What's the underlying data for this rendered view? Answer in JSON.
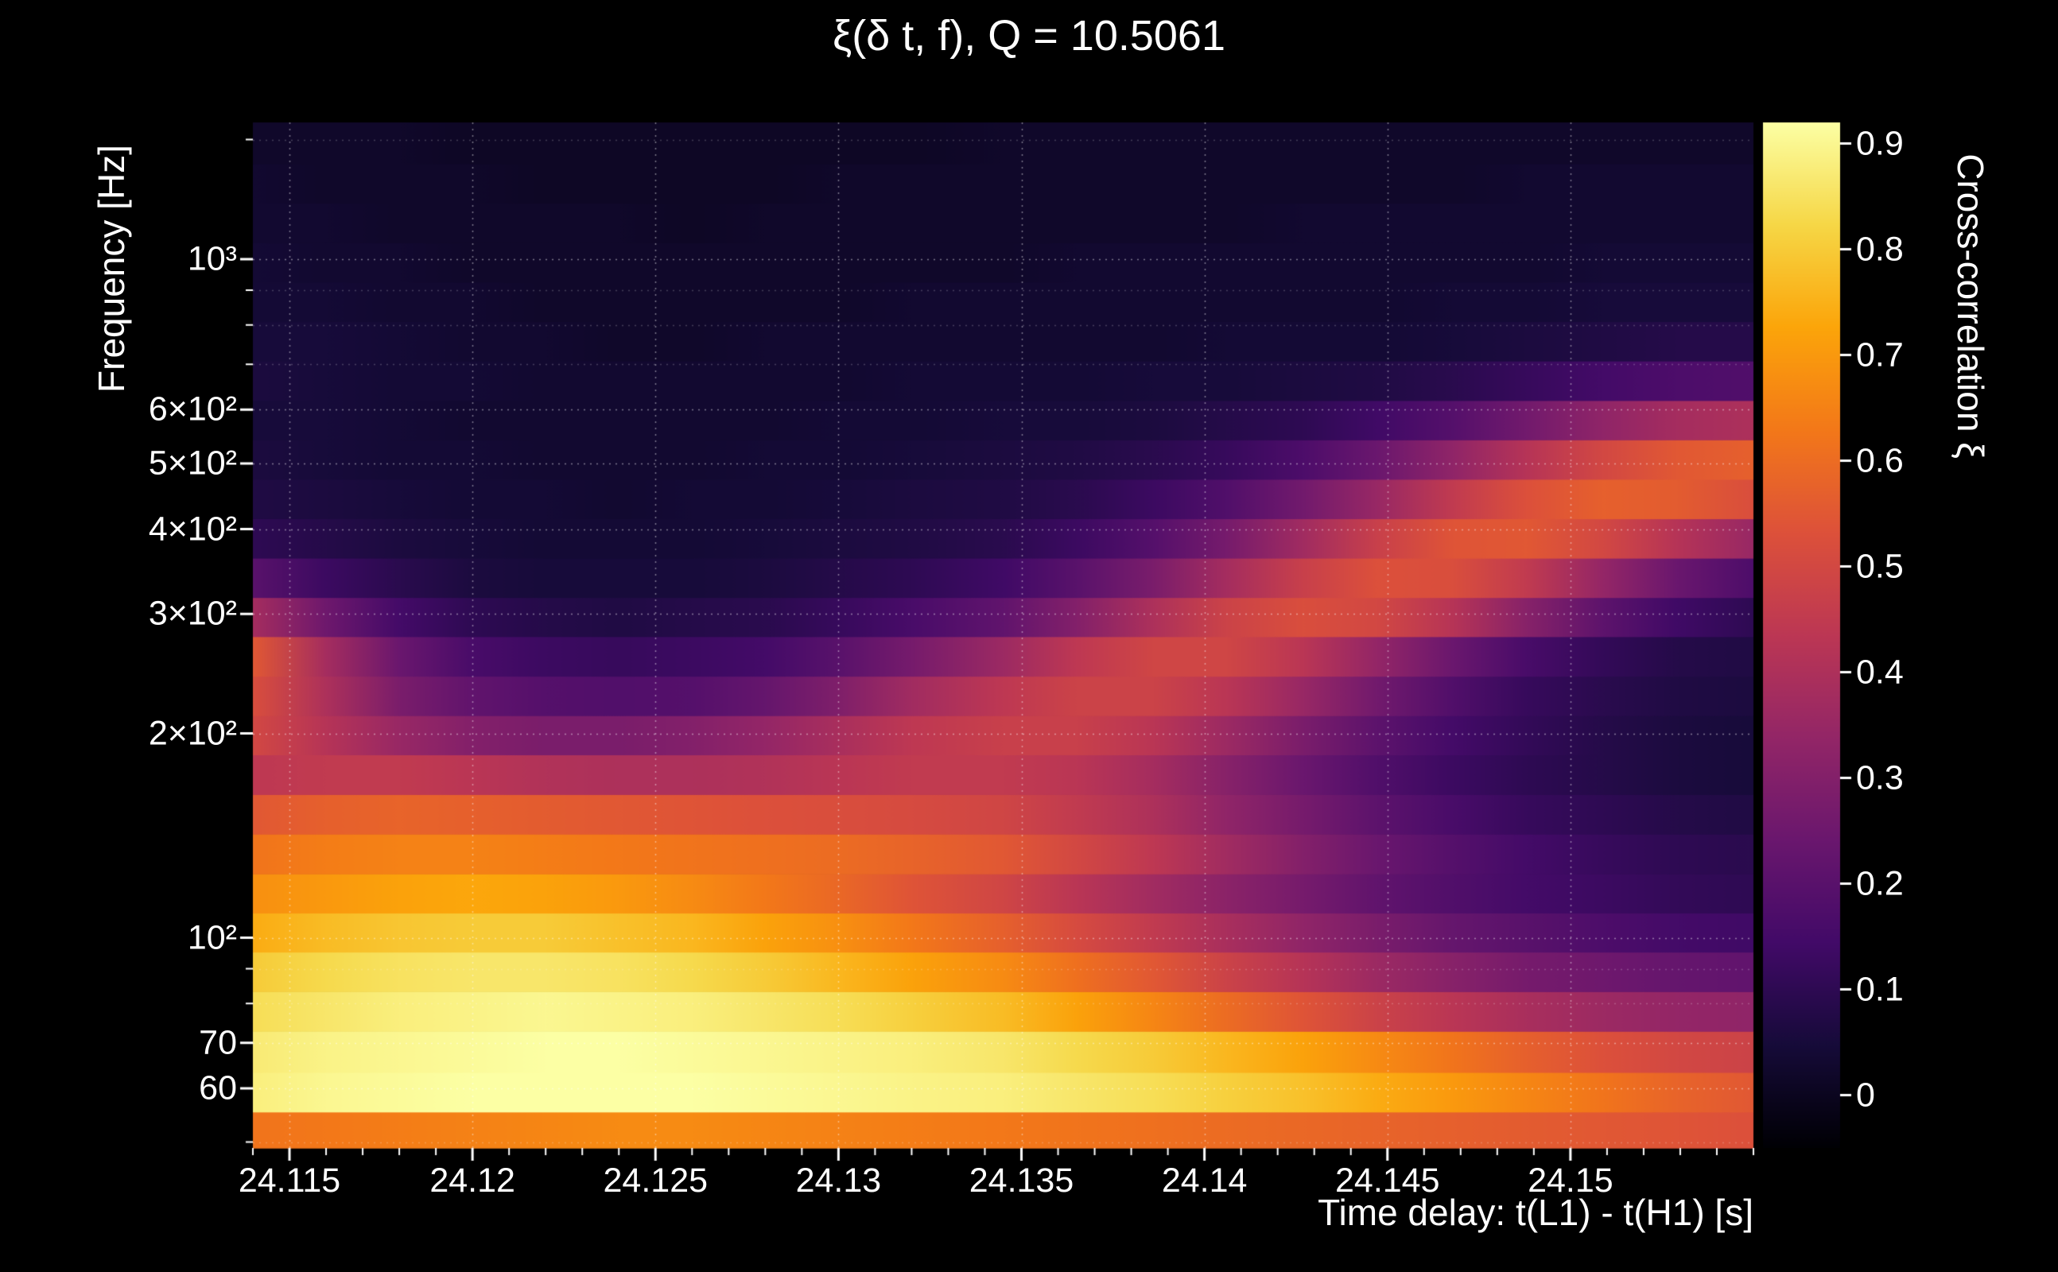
{
  "page": {
    "background": "#000000",
    "text_color": "#ffffff"
  },
  "chart_data": {
    "type": "heatmap",
    "title": "ξ(δ t, f), Q = 10.5061",
    "q_value": 10.5061,
    "xlabel": "Time delay: t(L1) - t(H1) [s]",
    "ylabel": "Frequency [Hz]",
    "colorbar_label": "Cross-correlation ξ",
    "x_range": [
      24.114,
      24.155
    ],
    "y_range": [
      49,
      1590
    ],
    "y_scale": "log",
    "color_range": [
      -0.05,
      0.92
    ],
    "grid_on": true,
    "x_ticks": [
      {
        "v": 24.115,
        "label": "24.115"
      },
      {
        "v": 24.12,
        "label": "24.12"
      },
      {
        "v": 24.125,
        "label": "24.125"
      },
      {
        "v": 24.13,
        "label": "24.13"
      },
      {
        "v": 24.135,
        "label": "24.135"
      },
      {
        "v": 24.14,
        "label": "24.14"
      },
      {
        "v": 24.145,
        "label": "24.145"
      },
      {
        "v": 24.15,
        "label": "24.15"
      }
    ],
    "x_minor_step": 0.001,
    "y_ticks": [
      {
        "v": 1000,
        "label": "10³"
      },
      {
        "v": 600,
        "label": "6×10²"
      },
      {
        "v": 500,
        "label": "5×10²"
      },
      {
        "v": 400,
        "label": "4×10²"
      },
      {
        "v": 300,
        "label": "3×10²"
      },
      {
        "v": 200,
        "label": "2×10²"
      },
      {
        "v": 100,
        "label": "10²"
      },
      {
        "v": 70,
        "label": "70"
      },
      {
        "v": 60,
        "label": "60"
      }
    ],
    "y_minor_ticks": [
      50,
      80,
      90,
      700,
      800,
      900,
      1500
    ],
    "colorbar_ticks": [
      {
        "v": 0.9,
        "label": "0.9"
      },
      {
        "v": 0.8,
        "label": "0.8"
      },
      {
        "v": 0.7,
        "label": "0.7"
      },
      {
        "v": 0.6,
        "label": "0.6"
      },
      {
        "v": 0.5,
        "label": "0.5"
      },
      {
        "v": 0.4,
        "label": "0.4"
      },
      {
        "v": 0.3,
        "label": "0.3"
      },
      {
        "v": 0.2,
        "label": "0.2"
      },
      {
        "v": 0.1,
        "label": "0.1"
      },
      {
        "v": 0,
        "label": "0"
      }
    ],
    "colormap": {
      "name": "inferno",
      "anchors": [
        [
          0.0,
          "#000004"
        ],
        [
          0.1,
          "#160b39"
        ],
        [
          0.2,
          "#420a68"
        ],
        [
          0.3,
          "#6a176e"
        ],
        [
          0.4,
          "#932667"
        ],
        [
          0.5,
          "#bc3754"
        ],
        [
          0.6,
          "#dd513a"
        ],
        [
          0.7,
          "#f37819"
        ],
        [
          0.8,
          "#fca50a"
        ],
        [
          0.9,
          "#f6d746"
        ],
        [
          1.0,
          "#fcffa4"
        ]
      ]
    },
    "grid": {
      "x": [
        24.114,
        24.116,
        24.118,
        24.12,
        24.122,
        24.124,
        24.126,
        24.128,
        24.13,
        24.132,
        24.1345,
        24.1365,
        24.1386,
        24.1406,
        24.1427,
        24.1447,
        24.1468,
        24.1488,
        24.1509,
        24.1529,
        24.155
      ],
      "frequencies": [
        52,
        59,
        68,
        78,
        89,
        102,
        116,
        133,
        152,
        174,
        199,
        227,
        260,
        297,
        339,
        388,
        443,
        507,
        579,
        662,
        757,
        865,
        989,
        1131,
        1293,
        1478
      ],
      "values": [
        [
          0.62,
          0.63,
          0.64,
          0.65,
          0.66,
          0.67,
          0.67,
          0.66,
          0.65,
          0.64,
          0.63,
          0.62,
          0.61,
          0.6,
          0.59,
          0.58,
          0.57,
          0.56,
          0.55,
          0.54,
          0.53
        ],
        [
          0.88,
          0.9,
          0.91,
          0.92,
          0.92,
          0.92,
          0.92,
          0.91,
          0.9,
          0.89,
          0.88,
          0.86,
          0.84,
          0.81,
          0.78,
          0.74,
          0.7,
          0.66,
          0.62,
          0.58,
          0.55
        ],
        [
          0.87,
          0.89,
          0.9,
          0.91,
          0.92,
          0.92,
          0.91,
          0.9,
          0.89,
          0.88,
          0.86,
          0.83,
          0.8,
          0.76,
          0.72,
          0.67,
          0.62,
          0.57,
          0.53,
          0.5,
          0.48
        ],
        [
          0.84,
          0.86,
          0.88,
          0.89,
          0.9,
          0.89,
          0.88,
          0.86,
          0.84,
          0.81,
          0.77,
          0.72,
          0.66,
          0.6,
          0.54,
          0.48,
          0.43,
          0.39,
          0.36,
          0.34,
          0.33
        ],
        [
          0.8,
          0.83,
          0.85,
          0.86,
          0.86,
          0.85,
          0.83,
          0.8,
          0.76,
          0.72,
          0.67,
          0.61,
          0.55,
          0.48,
          0.42,
          0.36,
          0.31,
          0.27,
          0.25,
          0.23,
          0.22
        ],
        [
          0.74,
          0.77,
          0.79,
          0.8,
          0.8,
          0.78,
          0.76,
          0.72,
          0.68,
          0.63,
          0.57,
          0.51,
          0.45,
          0.39,
          0.33,
          0.28,
          0.23,
          0.2,
          0.17,
          0.15,
          0.14
        ],
        [
          0.68,
          0.7,
          0.72,
          0.73,
          0.72,
          0.7,
          0.67,
          0.63,
          0.59,
          0.54,
          0.49,
          0.43,
          0.37,
          0.32,
          0.27,
          0.22,
          0.18,
          0.15,
          0.13,
          0.11,
          0.1
        ],
        [
          0.62,
          0.64,
          0.65,
          0.65,
          0.64,
          0.63,
          0.62,
          0.61,
          0.6,
          0.58,
          0.55,
          0.5,
          0.44,
          0.37,
          0.3,
          0.24,
          0.19,
          0.15,
          0.12,
          0.1,
          0.09
        ],
        [
          0.55,
          0.57,
          0.58,
          0.57,
          0.56,
          0.55,
          0.54,
          0.53,
          0.52,
          0.51,
          0.49,
          0.45,
          0.4,
          0.33,
          0.27,
          0.21,
          0.16,
          0.12,
          0.1,
          0.08,
          0.07
        ],
        [
          0.44,
          0.45,
          0.45,
          0.43,
          0.41,
          0.4,
          0.4,
          0.41,
          0.43,
          0.45,
          0.45,
          0.43,
          0.38,
          0.31,
          0.24,
          0.18,
          0.13,
          0.1,
          0.08,
          0.06,
          0.05
        ],
        [
          0.5,
          0.42,
          0.35,
          0.3,
          0.28,
          0.28,
          0.3,
          0.34,
          0.39,
          0.44,
          0.47,
          0.47,
          0.43,
          0.36,
          0.28,
          0.21,
          0.15,
          0.11,
          0.08,
          0.06,
          0.05
        ],
        [
          0.52,
          0.4,
          0.28,
          0.22,
          0.19,
          0.18,
          0.19,
          0.23,
          0.29,
          0.37,
          0.44,
          0.48,
          0.48,
          0.43,
          0.35,
          0.26,
          0.18,
          0.12,
          0.09,
          0.07,
          0.06
        ],
        [
          0.55,
          0.38,
          0.24,
          0.16,
          0.13,
          0.12,
          0.13,
          0.15,
          0.2,
          0.27,
          0.36,
          0.44,
          0.49,
          0.49,
          0.43,
          0.34,
          0.24,
          0.16,
          0.11,
          0.08,
          0.07
        ],
        [
          0.38,
          0.25,
          0.15,
          0.1,
          0.08,
          0.07,
          0.08,
          0.09,
          0.12,
          0.16,
          0.22,
          0.3,
          0.4,
          0.48,
          0.52,
          0.5,
          0.42,
          0.31,
          0.21,
          0.14,
          0.1
        ],
        [
          0.2,
          0.13,
          0.09,
          0.06,
          0.05,
          0.05,
          0.05,
          0.06,
          0.08,
          0.1,
          0.14,
          0.2,
          0.28,
          0.38,
          0.47,
          0.53,
          0.52,
          0.45,
          0.34,
          0.24,
          0.17
        ],
        [
          0.1,
          0.08,
          0.06,
          0.05,
          0.04,
          0.04,
          0.04,
          0.05,
          0.06,
          0.07,
          0.09,
          0.13,
          0.19,
          0.27,
          0.37,
          0.47,
          0.54,
          0.55,
          0.5,
          0.42,
          0.35
        ],
        [
          0.07,
          0.06,
          0.05,
          0.04,
          0.04,
          0.03,
          0.04,
          0.04,
          0.05,
          0.06,
          0.07,
          0.09,
          0.13,
          0.18,
          0.26,
          0.35,
          0.45,
          0.53,
          0.57,
          0.56,
          0.52
        ],
        [
          0.06,
          0.05,
          0.04,
          0.04,
          0.03,
          0.03,
          0.03,
          0.04,
          0.04,
          0.05,
          0.06,
          0.07,
          0.09,
          0.12,
          0.17,
          0.24,
          0.33,
          0.42,
          0.5,
          0.55,
          0.57
        ],
        [
          0.05,
          0.05,
          0.04,
          0.03,
          0.03,
          0.03,
          0.03,
          0.03,
          0.04,
          0.04,
          0.05,
          0.05,
          0.06,
          0.08,
          0.1,
          0.14,
          0.19,
          0.26,
          0.33,
          0.38,
          0.4
        ],
        [
          0.06,
          0.05,
          0.04,
          0.04,
          0.03,
          0.03,
          0.03,
          0.03,
          0.03,
          0.04,
          0.04,
          0.04,
          0.05,
          0.05,
          0.06,
          0.07,
          0.09,
          0.12,
          0.15,
          0.17,
          0.18
        ],
        [
          0.05,
          0.05,
          0.04,
          0.03,
          0.03,
          0.02,
          0.02,
          0.03,
          0.03,
          0.03,
          0.03,
          0.03,
          0.03,
          0.04,
          0.04,
          0.04,
          0.05,
          0.06,
          0.07,
          0.08,
          0.08
        ],
        [
          0.04,
          0.04,
          0.03,
          0.03,
          0.02,
          0.02,
          0.02,
          0.02,
          0.02,
          0.03,
          0.03,
          0.03,
          0.03,
          0.03,
          0.03,
          0.03,
          0.04,
          0.04,
          0.05,
          0.05,
          0.05
        ],
        [
          0.04,
          0.03,
          0.03,
          0.02,
          0.02,
          0.02,
          0.02,
          0.02,
          0.02,
          0.02,
          0.02,
          0.03,
          0.03,
          0.03,
          0.03,
          0.03,
          0.03,
          0.03,
          0.04,
          0.04,
          0.04
        ],
        [
          0.03,
          0.03,
          0.02,
          0.02,
          0.02,
          0.02,
          0.01,
          0.02,
          0.02,
          0.02,
          0.02,
          0.02,
          0.02,
          0.02,
          0.03,
          0.03,
          0.03,
          0.03,
          0.03,
          0.03,
          0.03
        ],
        [
          0.03,
          0.02,
          0.02,
          0.02,
          0.01,
          0.01,
          0.01,
          0.01,
          0.02,
          0.02,
          0.02,
          0.02,
          0.02,
          0.02,
          0.02,
          0.02,
          0.02,
          0.03,
          0.03,
          0.03,
          0.03
        ],
        [
          0.02,
          0.02,
          0.02,
          0.01,
          0.01,
          0.01,
          0.01,
          0.01,
          0.01,
          0.01,
          0.02,
          0.02,
          0.02,
          0.02,
          0.02,
          0.02,
          0.02,
          0.02,
          0.02,
          0.02,
          0.02
        ]
      ]
    }
  }
}
